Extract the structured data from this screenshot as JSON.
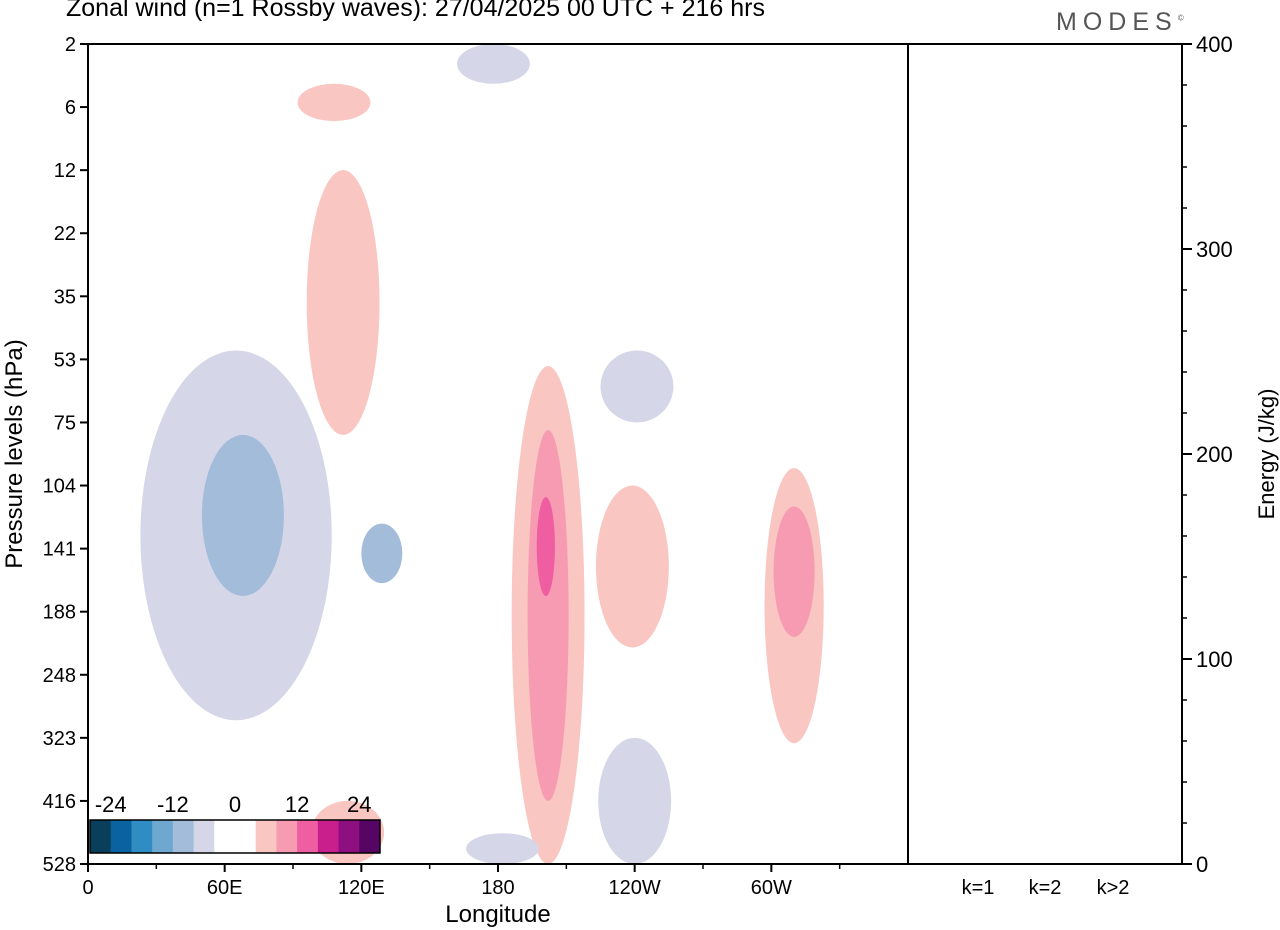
{
  "header": {
    "title": "Zonal wind (n=1 Rossby waves):  27/04/2025  00 UTC  + 216 hrs",
    "brand": "MODES",
    "brand_mark": "©"
  },
  "chart_data": [
    {
      "type": "heatmap",
      "title": "Zonal wind (n=1 Rossby waves):  27/04/2025  00 UTC  + 216 hrs",
      "xlabel": "Longitude",
      "ylabel": "Pressure levels (hPa)",
      "x_ticks": [
        "0",
        "60E",
        "120E",
        "180",
        "120W",
        "60W"
      ],
      "x_tick_degrees": [
        0,
        60,
        120,
        180,
        240,
        300
      ],
      "xlim": [
        0,
        360
      ],
      "y_ticks": [
        "2",
        "6",
        "12",
        "22",
        "35",
        "53",
        "75",
        "104",
        "141",
        "188",
        "248",
        "323",
        "416",
        "528"
      ],
      "colorbar": {
        "tick_labels": [
          "-24",
          "-12",
          "0",
          "12",
          "24"
        ],
        "colors": [
          "#0a3f5c",
          "#0b62a0",
          "#2f8dc4",
          "#6ea8d1",
          "#a3bcda",
          "#d5d6e8",
          "#ffffff",
          "#ffffff",
          "#f9c6c1",
          "#f79bb3",
          "#ef5ea1",
          "#c91f8c",
          "#8e0f80",
          "#560565"
        ]
      },
      "features": [
        {
          "sign": "positive",
          "level": 1,
          "lon": 108,
          "pressure_range": [
            4,
            7
          ]
        },
        {
          "sign": "positive",
          "level": 1,
          "lon": 112,
          "pressure_range": [
            12,
            80
          ]
        },
        {
          "sign": "negative",
          "level": 1,
          "lon": 65,
          "pressure_range": [
            50,
            300
          ]
        },
        {
          "sign": "negative",
          "level": 2,
          "lon": 68,
          "pressure_range": [
            80,
            175
          ]
        },
        {
          "sign": "negative",
          "level": 2,
          "lon": 129,
          "pressure_range": [
            125,
            165
          ]
        },
        {
          "sign": "negative",
          "level": 1,
          "lon": 178,
          "pressure_range": [
            2,
            4
          ]
        },
        {
          "sign": "positive",
          "level": 1,
          "lon": 202,
          "pressure_range": [
            55,
            528
          ]
        },
        {
          "sign": "positive",
          "level": 2,
          "lon": 202,
          "pressure_range": [
            78,
            416
          ]
        },
        {
          "sign": "positive",
          "level": 3,
          "lon": 201,
          "pressure_range": [
            110,
            175
          ]
        },
        {
          "sign": "negative",
          "level": 1,
          "lon": 241,
          "pressure_range": [
            50,
            75
          ]
        },
        {
          "sign": "positive",
          "level": 1,
          "lon": 239,
          "pressure_range": [
            104,
            220
          ]
        },
        {
          "sign": "negative",
          "level": 1,
          "lon": 240,
          "pressure_range": [
            323,
            528
          ]
        },
        {
          "sign": "negative",
          "level": 1,
          "lon": 182,
          "pressure_range": [
            470,
            528
          ]
        },
        {
          "sign": "positive",
          "level": 1,
          "lon": 310,
          "pressure_range": [
            95,
            330
          ]
        },
        {
          "sign": "positive",
          "level": 2,
          "lon": 310,
          "pressure_range": [
            115,
            210
          ]
        },
        {
          "sign": "positive",
          "level": 1,
          "lon": 114,
          "pressure_range": [
            416,
            528
          ]
        }
      ]
    },
    {
      "type": "bar",
      "ylabel": "Energy (J/kg)",
      "categories": [
        "k=1",
        "k=2",
        "k>2"
      ],
      "values": [
        0.3,
        0.1,
        0.2
      ],
      "ylim": [
        0,
        400
      ],
      "y_ticks": [
        "0",
        "100",
        "200",
        "300",
        "400"
      ]
    }
  ]
}
